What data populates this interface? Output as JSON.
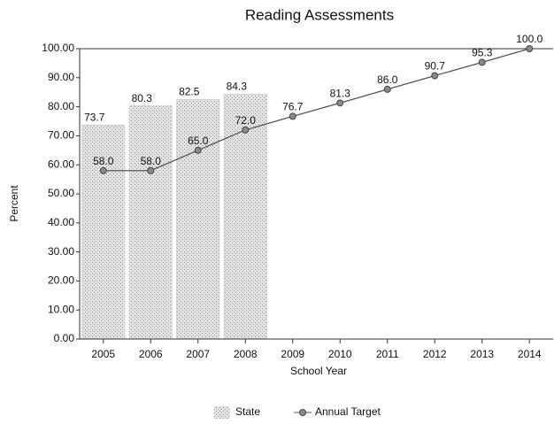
{
  "chart_data": {
    "type": "bar",
    "title": "Reading Assessments",
    "x_label": "School Year",
    "y_label": "Percent",
    "categories": [
      "2005",
      "2006",
      "2007",
      "2008",
      "2009",
      "2010",
      "2011",
      "2012",
      "2013",
      "2014"
    ],
    "series": [
      {
        "name": "State",
        "type": "bar",
        "color": "#d2d2d2",
        "values": [
          73.7,
          80.3,
          82.5,
          84.3,
          null,
          null,
          null,
          null,
          null,
          null
        ]
      },
      {
        "name": "Annual Target",
        "type": "line",
        "color": "#555555",
        "values": [
          58,
          58,
          65,
          72,
          76.7,
          81.3,
          86,
          90.7,
          95.3,
          100
        ],
        "value_labels": [
          "58.0",
          "58.0",
          "65.0",
          "72.0",
          "76.7",
          "81.3",
          "86.0",
          "90.7",
          "95.3",
          "100.0"
        ]
      }
    ],
    "ylim": [
      0,
      100
    ],
    "yticks": [
      {
        "value": 0,
        "label": "0.00"
      },
      {
        "value": 10,
        "label": "10.00"
      },
      {
        "value": 20,
        "label": "20.00"
      },
      {
        "value": 30,
        "label": "30.00"
      },
      {
        "value": 40,
        "label": "40.00"
      },
      {
        "value": 50,
        "label": "50.00"
      },
      {
        "value": 60,
        "label": "60.00"
      },
      {
        "value": 70,
        "label": "70.00"
      },
      {
        "value": 80,
        "label": "80.00"
      },
      {
        "value": 90,
        "label": "90.00"
      },
      {
        "value": 100,
        "label": "100.00"
      }
    ],
    "legend": "bottom"
  }
}
